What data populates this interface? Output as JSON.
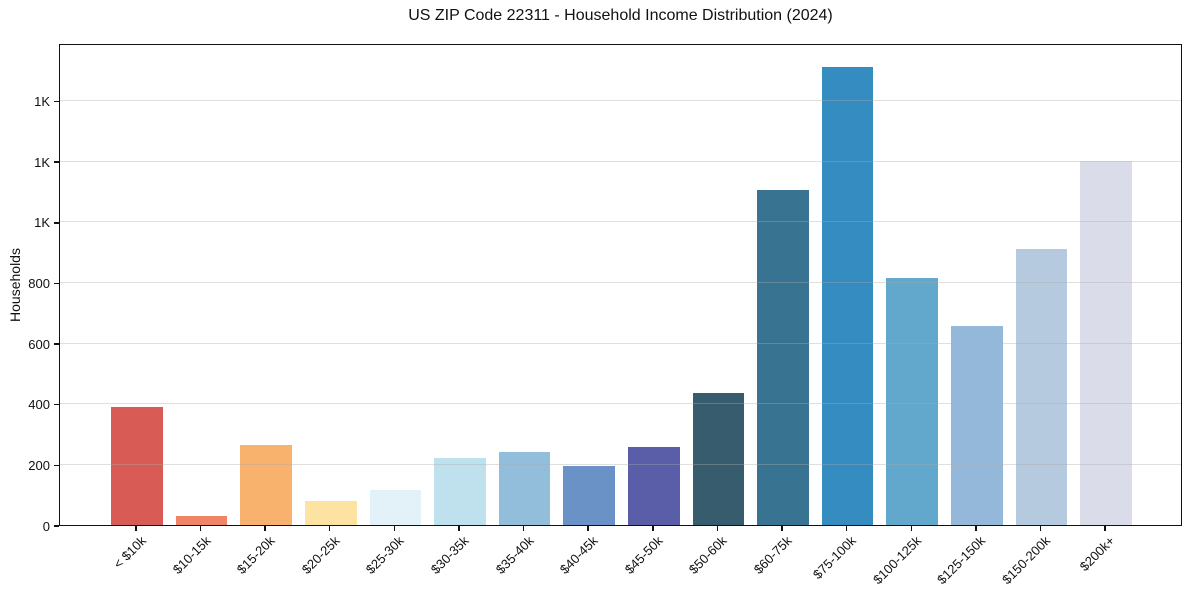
{
  "chart_data": {
    "type": "bar",
    "title": "US ZIP Code 22311 - Household Income Distribution (2024)",
    "xlabel": "",
    "ylabel": "Households",
    "ylim": [
      0,
      1590
    ],
    "grid": "horizontal, drawn above bars",
    "legend": "none",
    "categories": [
      "< $10k",
      "$10-15k",
      "$15-20k",
      "$20-25k",
      "$25-30k",
      "$30-35k",
      "$35-40k",
      "$40-45k",
      "$45-50k",
      "$50-60k",
      "$60-75k",
      "$75-100k",
      "$100-125k",
      "$125-150k",
      "$150-200k",
      "$200k+"
    ],
    "values": [
      390,
      30,
      265,
      78,
      115,
      220,
      240,
      195,
      257,
      435,
      1105,
      1510,
      815,
      655,
      910,
      1200
    ],
    "bar_colors": [
      "#d85c55",
      "#f08565",
      "#f9b26e",
      "#fce3a2",
      "#e3f1f8",
      "#bfe0ed",
      "#93bedb",
      "#6a92c6",
      "#5a5ea9",
      "#375c6e",
      "#387491",
      "#348cc0",
      "#62a8cc",
      "#93b8da",
      "#b5cade",
      "#dadce9"
    ],
    "yticks": {
      "values": [
        0,
        200,
        400,
        600,
        800,
        1000,
        1200,
        1400
      ],
      "labels": [
        "0",
        "200",
        "400",
        "600",
        "800",
        "1K",
        "1K",
        "1K"
      ]
    }
  }
}
